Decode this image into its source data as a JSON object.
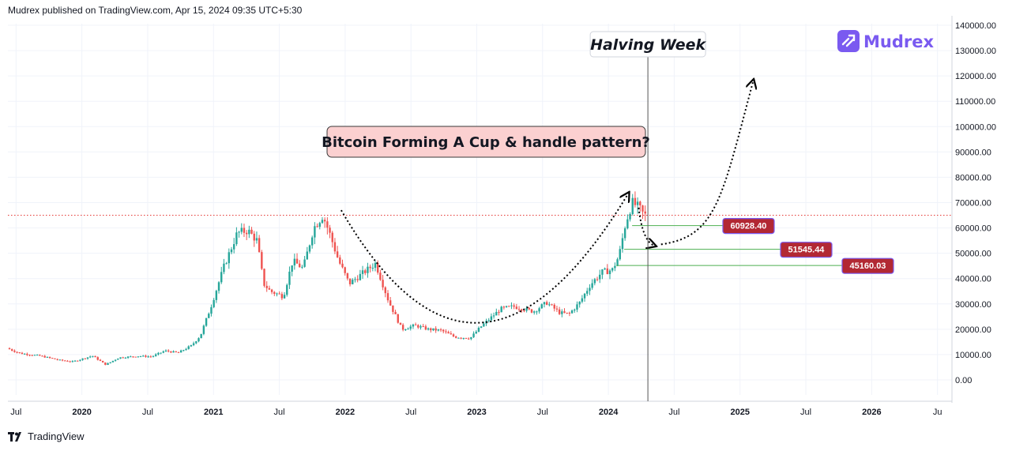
{
  "header": {
    "text": "Mudrex published on TradingView.com, Apr 15, 2024 09:35 UTC+5:30"
  },
  "footer": {
    "brand": "TradingView",
    "logo_icon": "tradingview-logo-icon"
  },
  "brand": {
    "name": "Mudrex",
    "icon": "mudrex-logo-icon",
    "color": "#7a5af0"
  },
  "annotations": {
    "title": "Bitcoin Forming A Cup & handle pattern?",
    "halving": "Halving Week"
  },
  "colors": {
    "up": "#26a69a",
    "down": "#ef5350",
    "label_bg": "#b22833",
    "support_line": "#4caf50",
    "current_price_line": "#e53935",
    "title_box_bg": "#fbd0d0"
  },
  "chart_data": {
    "type": "candlestick",
    "y_axis": {
      "min": 0,
      "max": 140000,
      "ticks": [
        "140000.00",
        "130000.00",
        "120000.00",
        "110000.00",
        "100000.00",
        "90000.00",
        "80000.00",
        "70000.00",
        "60000.00",
        "50000.00",
        "40000.00",
        "30000.00",
        "20000.00",
        "10000.00",
        "0.00"
      ]
    },
    "x_axis": {
      "ticks": [
        {
          "label": "Jul",
          "t": 2019.5,
          "major": false
        },
        {
          "label": "2020",
          "t": 2020.0,
          "major": true
        },
        {
          "label": "Jul",
          "t": 2020.5,
          "major": false
        },
        {
          "label": "2021",
          "t": 2021.0,
          "major": true
        },
        {
          "label": "Jul",
          "t": 2021.5,
          "major": false
        },
        {
          "label": "2022",
          "t": 2022.0,
          "major": true
        },
        {
          "label": "Jul",
          "t": 2022.5,
          "major": false
        },
        {
          "label": "2023",
          "t": 2023.0,
          "major": true
        },
        {
          "label": "Jul",
          "t": 2023.5,
          "major": false
        },
        {
          "label": "2024",
          "t": 2024.0,
          "major": true
        },
        {
          "label": "Jul",
          "t": 2024.5,
          "major": false
        },
        {
          "label": "2025",
          "t": 2025.0,
          "major": true
        },
        {
          "label": "Jul",
          "t": 2025.5,
          "major": false
        },
        {
          "label": "2026",
          "t": 2026.0,
          "major": true
        },
        {
          "label": "Ju",
          "t": 2026.5,
          "major": false
        }
      ]
    },
    "price_path": [
      [
        2019.45,
        12500
      ],
      [
        2019.55,
        10500
      ],
      [
        2019.7,
        9500
      ],
      [
        2019.85,
        7800
      ],
      [
        2019.95,
        7200
      ],
      [
        2020.1,
        9500
      ],
      [
        2020.2,
        6000
      ],
      [
        2020.3,
        8800
      ],
      [
        2020.45,
        9400
      ],
      [
        2020.55,
        9200
      ],
      [
        2020.65,
        11500
      ],
      [
        2020.75,
        10700
      ],
      [
        2020.85,
        13500
      ],
      [
        2020.92,
        17500
      ],
      [
        2021.0,
        29000
      ],
      [
        2021.1,
        45000
      ],
      [
        2021.2,
        58000
      ],
      [
        2021.28,
        59000
      ],
      [
        2021.35,
        55000
      ],
      [
        2021.4,
        38000
      ],
      [
        2021.45,
        35000
      ],
      [
        2021.55,
        33000
      ],
      [
        2021.62,
        47000
      ],
      [
        2021.7,
        44000
      ],
      [
        2021.78,
        60000
      ],
      [
        2021.85,
        65000
      ],
      [
        2021.9,
        58000
      ],
      [
        2021.97,
        47000
      ],
      [
        2022.05,
        38000
      ],
      [
        2022.15,
        42000
      ],
      [
        2022.25,
        46000
      ],
      [
        2022.35,
        31000
      ],
      [
        2022.45,
        20000
      ],
      [
        2022.55,
        21500
      ],
      [
        2022.65,
        20000
      ],
      [
        2022.75,
        19500
      ],
      [
        2022.85,
        17000
      ],
      [
        2022.97,
        16500
      ],
      [
        2023.05,
        21000
      ],
      [
        2023.2,
        28000
      ],
      [
        2023.3,
        29000
      ],
      [
        2023.45,
        27000
      ],
      [
        2023.55,
        30500
      ],
      [
        2023.65,
        26500
      ],
      [
        2023.72,
        26000
      ],
      [
        2023.8,
        30500
      ],
      [
        2023.88,
        37500
      ],
      [
        2023.97,
        42500
      ],
      [
        2024.05,
        43500
      ],
      [
        2024.1,
        49000
      ],
      [
        2024.15,
        62000
      ],
      [
        2024.2,
        70000
      ],
      [
        2024.25,
        68000
      ],
      [
        2024.29,
        65000
      ]
    ],
    "current_price": 65000,
    "levels": [
      {
        "value": 60928.4,
        "label": "60928.40",
        "from_t": 2024.18
      },
      {
        "value": 51545.44,
        "label": "51545.44",
        "from_t": 2024.12
      },
      {
        "value": 45160.03,
        "label": "45160.03",
        "from_t": 2024.06
      }
    ],
    "halving_t": 2024.3,
    "cup_curve": [
      [
        2021.97,
        67000
      ],
      [
        2023.0,
        29500
      ],
      [
        2024.15,
        73500
      ]
    ],
    "handle_curve": [
      [
        2024.23,
        68000
      ],
      [
        2024.35,
        53000
      ]
    ],
    "projection_curve": [
      [
        2024.4,
        53500
      ],
      [
        2025.1,
        118000
      ]
    ]
  }
}
